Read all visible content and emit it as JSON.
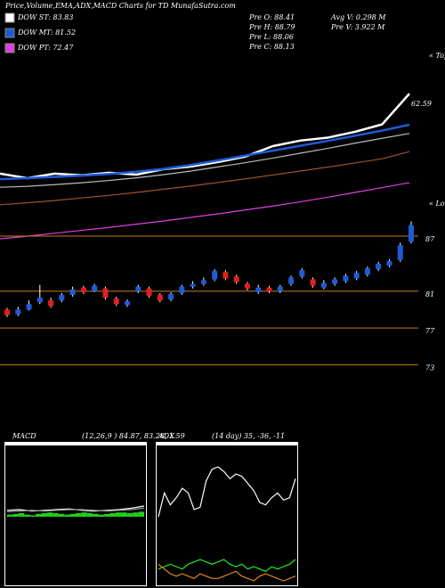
{
  "header": {
    "title": "Price,Volume,EMA,ADX,MACD Charts for TD MunafaSutra.com",
    "legend": [
      {
        "text": "DOW ST: 83.83",
        "color": "#ffffff"
      },
      {
        "text": "DOW MT: 81.52",
        "color": "#1e5bd6"
      },
      {
        "text": "DOW PT: 72.47",
        "color": "#e040e0"
      }
    ],
    "info": [
      "Pre O: 88.41",
      "Pre H: 88.79",
      "Pre L: 88.06",
      "Pre C: 88.13",
      "Avg V: 0.298 M",
      "Pre V: 3.922 M"
    ]
  },
  "chart_data": [
    {
      "type": "line",
      "annotation": "62.59",
      "tops_label": "« Tops",
      "ylim": [
        20,
        75
      ],
      "series": [
        {
          "color": "#ffffff",
          "values": [
            37.9,
            36.5,
            37.9,
            37.4,
            38.2,
            37.6,
            39.3,
            40.1,
            41.5,
            43.2,
            46.4,
            48.1,
            49.0,
            50.8,
            53.1,
            62.59
          ]
        },
        {
          "color": "#1e5bd6",
          "values": [
            36.2,
            36.5,
            36.9,
            37.3,
            37.8,
            38.5,
            39.4,
            40.6,
            42.0,
            43.5,
            45.0,
            46.5,
            48.0,
            49.6,
            51.2,
            53.0
          ]
        },
        {
          "color": "#bbbbbb",
          "values": [
            33.7,
            34.0,
            34.5,
            35.1,
            35.8,
            36.6,
            37.6,
            38.7,
            40.0,
            41.3,
            42.7,
            44.2,
            45.7,
            47.3,
            48.8,
            50.3
          ]
        },
        {
          "color": "#a0522d",
          "values": [
            28.3,
            28.9,
            29.6,
            30.4,
            31.2,
            32.1,
            33.1,
            34.1,
            35.2,
            36.3,
            37.5,
            38.7,
            39.9,
            41.2,
            42.5,
            44.7
          ]
        },
        {
          "color": "#e040e0",
          "values": [
            17.8,
            18.6,
            19.5,
            20.4,
            21.3,
            22.3,
            23.3,
            24.4,
            25.5,
            26.7,
            27.9,
            29.2,
            30.6,
            32.1,
            33.6,
            35.1
          ]
        }
      ]
    },
    {
      "type": "candlestick",
      "lows_label": "« Lows",
      "ylim": [
        71,
        90.4
      ],
      "yticks": [
        87,
        81,
        77,
        73
      ],
      "up_color": "#1e5bd6",
      "down_color": "#e0201c",
      "open": [
        79.0,
        78.5,
        79.0,
        79.8,
        80.0,
        80.0,
        80.6,
        81.4,
        81.0,
        81.3,
        80.2,
        79.5,
        81.0,
        81.3,
        80.6,
        80.1,
        80.8,
        81.5,
        81.8,
        82.3,
        83.1,
        82.6,
        81.8,
        80.9,
        81.4,
        81.0,
        81.8,
        82.6,
        82.3,
        81.4,
        81.8,
        82.1,
        82.4,
        82.8,
        83.4,
        83.8,
        84.4,
        86.4
      ],
      "high": [
        79.2,
        79.3,
        80.0,
        81.7,
        80.3,
        80.8,
        81.5,
        81.6,
        81.8,
        81.5,
        80.4,
        80.1,
        81.7,
        81.5,
        80.8,
        80.9,
        81.7,
        82.1,
        82.5,
        83.4,
        83.3,
        82.8,
        82.0,
        81.7,
        81.6,
        81.7,
        82.7,
        83.5,
        82.5,
        82.2,
        82.5,
        82.9,
        83.2,
        83.7,
        84.2,
        84.5,
        86.3,
        88.6
      ],
      "low": [
        78.2,
        78.3,
        78.9,
        79.6,
        79.2,
        79.8,
        80.4,
        80.7,
        80.9,
        80.1,
        79.4,
        79.3,
        80.8,
        80.3,
        79.8,
        79.9,
        80.6,
        81.3,
        81.6,
        82.1,
        82.2,
        81.8,
        81.1,
        80.7,
        80.8,
        80.8,
        81.6,
        82.4,
        81.4,
        81.2,
        81.6,
        81.9,
        82.2,
        82.6,
        83.2,
        83.6,
        84.2,
        86.2
      ],
      "close": [
        78.4,
        79.0,
        79.6,
        80.3,
        79.4,
        80.6,
        81.2,
        80.9,
        81.6,
        80.3,
        79.6,
        79.9,
        81.5,
        80.5,
        80.0,
        80.7,
        81.5,
        81.8,
        82.2,
        83.2,
        82.4,
        82.0,
        81.3,
        81.4,
        81.0,
        81.5,
        82.5,
        83.3,
        81.6,
        81.9,
        82.3,
        82.7,
        83.0,
        83.5,
        84.0,
        84.3,
        86.0,
        88.2
      ]
    },
    {
      "type": "macd",
      "title": "MACD",
      "subtitle": "(12,26,9 ) 84.87, 83.28, 1.59",
      "ylim": [
        -10,
        10
      ],
      "series": [
        {
          "color": "#ffffff",
          "values": [
            0.9,
            1.0,
            0.8,
            0.9,
            1.0,
            1.1,
            0.9,
            0.8,
            0.9,
            1.0,
            1.2,
            1.5
          ]
        },
        {
          "color": "#999999",
          "values": [
            0.7,
            0.8,
            0.9,
            0.8,
            0.9,
            1.0,
            1.0,
            0.9,
            0.8,
            0.9,
            1.0,
            1.2
          ]
        }
      ],
      "histogram": {
        "color": "#22cc22",
        "values": [
          0.3,
          0.4,
          0.5,
          0.3,
          0.2,
          0.4,
          0.5,
          0.6,
          0.5,
          0.4,
          0.3,
          0.4,
          0.5,
          0.6,
          0.5,
          0.4,
          0.3,
          0.4,
          0.5,
          0.6,
          0.6,
          0.5,
          0.6,
          0.7
        ]
      }
    },
    {
      "type": "line",
      "title": "ADX",
      "subtitle": "(14 day) 35, -36, -11",
      "ylim": [
        0,
        60
      ],
      "series": [
        {
          "color": "#ffffff",
          "values": [
            30,
            40,
            35,
            38,
            42,
            40,
            33,
            34,
            45,
            50,
            51,
            49,
            46,
            48,
            47,
            44,
            41,
            36,
            35,
            38,
            40,
            37,
            38,
            46
          ]
        },
        {
          "color": "#22ee22",
          "values": [
            8,
            9,
            10,
            9,
            8,
            10,
            11,
            12,
            11,
            10,
            11,
            12,
            10,
            9,
            10,
            8,
            9,
            8,
            7,
            9,
            8,
            9,
            10,
            12
          ]
        },
        {
          "color": "#e08a1e",
          "values": [
            10,
            8,
            6,
            5,
            6,
            5,
            4,
            6,
            5,
            4,
            4,
            5,
            6,
            7,
            5,
            4,
            3,
            5,
            6,
            5,
            4,
            3,
            4,
            5
          ]
        }
      ]
    }
  ]
}
